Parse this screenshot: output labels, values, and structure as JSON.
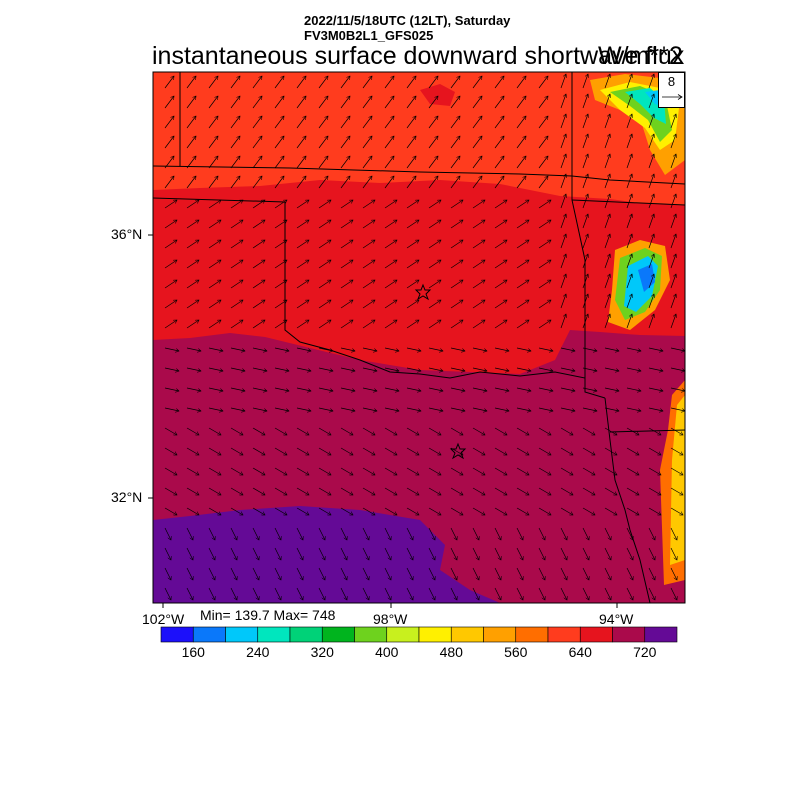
{
  "header": {
    "line1": "2022/11/5/18UTC (12LT), Saturday",
    "line2": "FV3M0B2L1_GFS025"
  },
  "title": "instantaneous surface downward shortwave flux",
  "units": "W/m**2",
  "stats": "Min= 139.7 Max= 748",
  "reference_vector": {
    "value": "8"
  },
  "axes": {
    "lat_labels": [
      "36°N",
      "32°N"
    ],
    "lon_labels": [
      "102°W",
      "98°W",
      "94°W"
    ]
  },
  "markers": [
    {
      "name": "star-north",
      "lat": 35.2,
      "lon": -97.5
    },
    {
      "name": "star-south",
      "lat": 32.7,
      "lon": -97.0
    }
  ],
  "colorbar": {
    "colors": [
      "#1c10fa",
      "#0a78fa",
      "#00c8fa",
      "#00e6be",
      "#00d278",
      "#00b41e",
      "#6ed21e",
      "#c8f01e",
      "#fff000",
      "#ffc800",
      "#ffa000",
      "#ff6e00",
      "#ff3c1e",
      "#e6141e",
      "#aa0a4b",
      "#640a96"
    ],
    "tick_labels": [
      "160",
      "240",
      "320",
      "400",
      "480",
      "560",
      "640",
      "720"
    ]
  },
  "palette": {
    "north_band": "#ff3c1e",
    "central_band": "#e6141e",
    "south_band": "#aa0a4b",
    "southwest_band": "#640a96"
  }
}
